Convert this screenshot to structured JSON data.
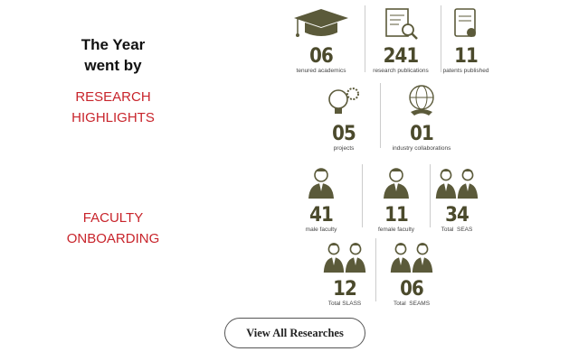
{
  "header": {
    "title": "The Year went by"
  },
  "sections": [
    {
      "title": "RESEARCH HIGHLIGHTS",
      "stats": [
        {
          "number": "06",
          "label": "tenured academics"
        },
        {
          "number": "241",
          "label": "research publications"
        },
        {
          "number": "11",
          "label": "patents published"
        },
        {
          "number": "05",
          "label": "projects"
        },
        {
          "number": "01",
          "label": "industry collaborations"
        }
      ]
    },
    {
      "title": "FACULTY ONBOARDING",
      "stats": [
        {
          "number": "41",
          "label": "male faculty"
        },
        {
          "number": "11",
          "label": "female faculty"
        },
        {
          "number": "34",
          "label": "Total  SEAS"
        },
        {
          "number": "12",
          "label": "Total SLASS"
        },
        {
          "number": "06",
          "label": "Total  SEAMS"
        }
      ]
    }
  ],
  "button": {
    "label": "View All Researches"
  }
}
